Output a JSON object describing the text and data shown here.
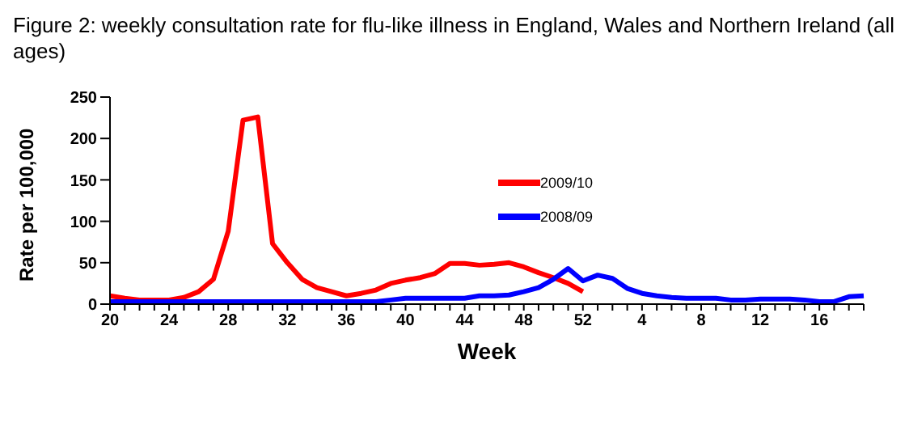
{
  "chart_data": {
    "type": "line",
    "title": "Figure 2: weekly consultation rate for flu-like illness in England, Wales and Northern Ireland (all ages)",
    "xlabel": "Week",
    "ylabel": "Rate per 100,000",
    "categories": [
      "20",
      null,
      null,
      null,
      "24",
      null,
      null,
      null,
      "28",
      null,
      null,
      null,
      "32",
      null,
      null,
      null,
      "36",
      null,
      null,
      null,
      "40",
      null,
      null,
      null,
      "44",
      null,
      null,
      null,
      "48",
      null,
      null,
      null,
      "52",
      null,
      null,
      null,
      "4",
      null,
      null,
      null,
      "8",
      null,
      null,
      null,
      "12",
      null,
      null,
      null,
      "16",
      null,
      null,
      null
    ],
    "series": [
      {
        "name": "2009/10",
        "color": "#ff0000",
        "values": [
          10,
          7,
          5,
          5,
          5,
          8,
          15,
          30,
          88,
          222,
          226,
          73,
          50,
          30,
          20,
          15,
          10,
          13,
          17,
          25,
          29,
          32,
          37,
          49,
          49,
          47,
          48,
          50,
          45,
          38,
          32,
          25,
          15,
          null,
          null,
          null,
          null,
          null,
          null,
          null,
          null,
          null,
          null,
          null,
          null,
          null,
          null,
          null,
          null,
          null,
          null,
          null
        ]
      },
      {
        "name": "2008/09",
        "color": "#0000ff",
        "values": [
          3,
          3,
          3,
          3,
          3,
          3,
          3,
          3,
          3,
          3,
          3,
          3,
          3,
          3,
          3,
          3,
          3,
          3,
          3,
          5,
          7,
          7,
          7,
          7,
          7,
          10,
          10,
          11,
          15,
          20,
          30,
          43,
          28,
          35,
          31,
          19,
          13,
          10,
          8,
          7,
          7,
          7,
          5,
          5,
          6,
          6,
          6,
          5,
          3,
          3,
          9,
          10
        ]
      }
    ],
    "ylim": [
      0,
      250
    ],
    "yticks": [
      0,
      50,
      100,
      150,
      200,
      250
    ],
    "grid": false,
    "legend": "top right",
    "marker": "none",
    "line_style": "solid"
  }
}
